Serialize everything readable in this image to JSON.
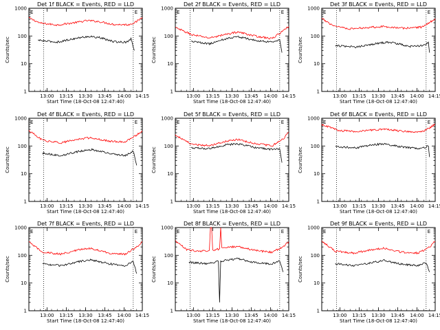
{
  "figure": {
    "xlabel": "Start Time (18-Oct-08 12:47:40)",
    "ylabel": "Counts/sec",
    "x_tick_labels": [
      "13:00",
      "13:15",
      "13:30",
      "13:45",
      "14:00",
      "14:15"
    ],
    "y_tick_labels": [
      "1",
      "10",
      "100",
      "1000"
    ],
    "corner_labels": [
      "E",
      "E"
    ]
  },
  "chart_data": [
    {
      "type": "line",
      "title": "Det 1f BLACK = Events, RED = LLD",
      "xlabel": "Start Time (18-Oct-08 12:47:40)",
      "ylabel": "Counts/sec",
      "x_ticks": [
        "13:00",
        "13:15",
        "13:30",
        "13:45",
        "14:00",
        "14:15"
      ],
      "y_scale": "log",
      "ylim": [
        1,
        1000
      ],
      "series": [
        {
          "color": "#ff0000",
          "points": [
            [
              0,
              450
            ],
            [
              0.1,
              290
            ],
            [
              0.25,
              250
            ],
            [
              0.4,
              300
            ],
            [
              0.52,
              360
            ],
            [
              0.62,
              330
            ],
            [
              0.75,
              260
            ],
            [
              0.88,
              255
            ],
            [
              0.95,
              330
            ],
            [
              1,
              470
            ]
          ]
        },
        {
          "color": "#000000",
          "points": [
            [
              0.08,
              70
            ],
            [
              0.25,
              60
            ],
            [
              0.4,
              80
            ],
            [
              0.52,
              96
            ],
            [
              0.62,
              88
            ],
            [
              0.75,
              62
            ],
            [
              0.86,
              60
            ],
            [
              0.9,
              80
            ],
            [
              0.93,
              30
            ]
          ]
        }
      ]
    },
    {
      "type": "line",
      "title": "Det 2f BLACK = Events, RED = LLD",
      "xlabel": "Start Time (18-Oct-08 12:47:40)",
      "ylabel": "Counts/sec",
      "x_ticks": [
        "13:00",
        "13:15",
        "13:30",
        "13:45",
        "14:00",
        "14:15"
      ],
      "y_scale": "log",
      "ylim": [
        1,
        1000
      ],
      "series": [
        {
          "color": "#ff0000",
          "points": [
            [
              0,
              200
            ],
            [
              0.15,
              110
            ],
            [
              0.3,
              85
            ],
            [
              0.45,
              115
            ],
            [
              0.55,
              140
            ],
            [
              0.7,
              100
            ],
            [
              0.85,
              80
            ],
            [
              0.95,
              150
            ],
            [
              1,
              220
            ]
          ]
        },
        {
          "color": "#000000",
          "points": [
            [
              0.14,
              65
            ],
            [
              0.3,
              52
            ],
            [
              0.45,
              80
            ],
            [
              0.55,
              95
            ],
            [
              0.7,
              70
            ],
            [
              0.84,
              60
            ],
            [
              0.92,
              75
            ],
            [
              0.94,
              25
            ]
          ]
        }
      ]
    },
    {
      "type": "line",
      "title": "Det 3f BLACK = Events, RED = LLD",
      "xlabel": "Start Time (18-Oct-08 12:47:40)",
      "ylabel": "Counts/sec",
      "x_ticks": [
        "13:00",
        "13:15",
        "13:30",
        "13:45",
        "14:00",
        "14:15"
      ],
      "y_scale": "log",
      "ylim": [
        1,
        1000
      ],
      "series": [
        {
          "color": "#ff0000",
          "points": [
            [
              0,
              420
            ],
            [
              0.1,
              240
            ],
            [
              0.25,
              180
            ],
            [
              0.45,
              210
            ],
            [
              0.55,
              220
            ],
            [
              0.72,
              190
            ],
            [
              0.88,
              210
            ],
            [
              0.95,
              300
            ],
            [
              1,
              430
            ]
          ]
        },
        {
          "color": "#000000",
          "points": [
            [
              0.12,
              45
            ],
            [
              0.3,
              40
            ],
            [
              0.5,
              55
            ],
            [
              0.6,
              60
            ],
            [
              0.78,
              42
            ],
            [
              0.9,
              45
            ],
            [
              0.94,
              60
            ],
            [
              0.95,
              25
            ]
          ]
        }
      ]
    },
    {
      "type": "line",
      "title": "Det 4f BLACK = Events, RED = LLD",
      "xlabel": "Start Time (18-Oct-08 12:47:40)",
      "ylabel": "Counts/sec",
      "x_ticks": [
        "13:00",
        "13:15",
        "13:30",
        "13:45",
        "14:00",
        "14:15"
      ],
      "y_scale": "log",
      "ylim": [
        1,
        1000
      ],
      "series": [
        {
          "color": "#ff0000",
          "points": [
            [
              0,
              360
            ],
            [
              0.12,
              160
            ],
            [
              0.28,
              130
            ],
            [
              0.45,
              180
            ],
            [
              0.55,
              200
            ],
            [
              0.7,
              150
            ],
            [
              0.85,
              140
            ],
            [
              0.95,
              250
            ],
            [
              1,
              330
            ]
          ]
        },
        {
          "color": "#000000",
          "points": [
            [
              0.12,
              55
            ],
            [
              0.28,
              45
            ],
            [
              0.45,
              65
            ],
            [
              0.55,
              75
            ],
            [
              0.7,
              55
            ],
            [
              0.85,
              45
            ],
            [
              0.92,
              65
            ],
            [
              0.95,
              20
            ]
          ]
        }
      ]
    },
    {
      "type": "line",
      "title": "Det 5f BLACK = Events, RED = LLD",
      "xlabel": "Start Time (18-Oct-08 12:47:40)",
      "ylabel": "Counts/sec",
      "x_ticks": [
        "13:00",
        "13:15",
        "13:30",
        "13:45",
        "14:00",
        "14:15"
      ],
      "y_scale": "log",
      "ylim": [
        1,
        1000
      ],
      "series": [
        {
          "color": "#ff0000",
          "points": [
            [
              0,
              250
            ],
            [
              0.15,
              110
            ],
            [
              0.3,
              105
            ],
            [
              0.45,
              150
            ],
            [
              0.55,
              170
            ],
            [
              0.7,
              125
            ],
            [
              0.85,
              100
            ],
            [
              0.95,
              180
            ],
            [
              1,
              310
            ]
          ]
        },
        {
          "color": "#000000",
          "points": [
            [
              0.14,
              85
            ],
            [
              0.3,
              80
            ],
            [
              0.45,
              110
            ],
            [
              0.55,
              120
            ],
            [
              0.7,
              90
            ],
            [
              0.85,
              75
            ],
            [
              0.92,
              80
            ],
            [
              0.94,
              25
            ]
          ]
        }
      ]
    },
    {
      "type": "line",
      "title": "Det 6f BLACK = Events, RED = LLD",
      "xlabel": "Start Time (18-Oct-08 12:47:40)",
      "ylabel": "Counts/sec",
      "x_ticks": [
        "13:00",
        "13:15",
        "13:30",
        "13:45",
        "14:00",
        "14:15"
      ],
      "y_scale": "log",
      "ylim": [
        1,
        1000
      ],
      "series": [
        {
          "color": "#ff0000",
          "points": [
            [
              0,
              600
            ],
            [
              0.15,
              360
            ],
            [
              0.3,
              330
            ],
            [
              0.45,
              380
            ],
            [
              0.55,
              400
            ],
            [
              0.72,
              340
            ],
            [
              0.88,
              320
            ],
            [
              0.95,
              450
            ],
            [
              1,
              620
            ]
          ]
        },
        {
          "color": "#000000",
          "points": [
            [
              0.12,
              95
            ],
            [
              0.3,
              85
            ],
            [
              0.45,
              110
            ],
            [
              0.55,
              120
            ],
            [
              0.72,
              90
            ],
            [
              0.88,
              80
            ],
            [
              0.94,
              100
            ],
            [
              0.95,
              40
            ]
          ]
        }
      ]
    },
    {
      "type": "line",
      "title": "Det 7f BLACK = Events, RED = LLD",
      "xlabel": "Start Time (18-Oct-08 12:47:40)",
      "ylabel": "Counts/sec",
      "x_ticks": [
        "13:00",
        "13:15",
        "13:30",
        "13:45",
        "14:00",
        "14:15"
      ],
      "y_scale": "log",
      "ylim": [
        1,
        1000
      ],
      "series": [
        {
          "color": "#ff0000",
          "points": [
            [
              0,
              300
            ],
            [
              0.12,
              130
            ],
            [
              0.28,
              110
            ],
            [
              0.45,
              160
            ],
            [
              0.55,
              180
            ],
            [
              0.7,
              120
            ],
            [
              0.85,
              110
            ],
            [
              0.95,
              200
            ],
            [
              1,
              310
            ]
          ]
        },
        {
          "color": "#000000",
          "points": [
            [
              0.12,
              50
            ],
            [
              0.28,
              42
            ],
            [
              0.45,
              60
            ],
            [
              0.55,
              68
            ],
            [
              0.7,
              50
            ],
            [
              0.85,
              42
            ],
            [
              0.92,
              60
            ],
            [
              0.95,
              22
            ]
          ]
        }
      ]
    },
    {
      "type": "line",
      "title": "Det 8f BLACK = Events, RED = LLD",
      "xlabel": "Start Time (18-Oct-08 12:47:40)",
      "ylabel": "Counts/sec",
      "x_ticks": [
        "13:00",
        "13:15",
        "13:30",
        "13:45",
        "14:00",
        "14:15"
      ],
      "y_scale": "log",
      "ylim": [
        1,
        1000
      ],
      "series": [
        {
          "color": "#ff0000",
          "points": [
            [
              0,
              330
            ],
            [
              0.1,
              160
            ],
            [
              0.2,
              140
            ],
            [
              0.3,
              150
            ],
            [
              0.31,
              1000
            ],
            [
              0.32,
              1000
            ],
            [
              0.33,
              150
            ],
            [
              0.39,
              170
            ],
            [
              0.4,
              1000
            ],
            [
              0.41,
              180
            ],
            [
              0.55,
              210
            ],
            [
              0.7,
              150
            ],
            [
              0.85,
              130
            ],
            [
              0.95,
              200
            ],
            [
              1,
              310
            ]
          ]
        },
        {
          "color": "#000000",
          "points": [
            [
              0.12,
              55
            ],
            [
              0.3,
              50
            ],
            [
              0.33,
              55
            ],
            [
              0.38,
              60
            ],
            [
              0.39,
              2
            ],
            [
              0.4,
              62
            ],
            [
              0.55,
              75
            ],
            [
              0.7,
              55
            ],
            [
              0.85,
              48
            ],
            [
              0.92,
              65
            ],
            [
              0.95,
              25
            ]
          ]
        }
      ]
    },
    {
      "type": "line",
      "title": "Det 9f BLACK = Events, RED = LLD",
      "xlabel": "Start Time (18-Oct-08 12:47:40)",
      "ylabel": "Counts/sec",
      "x_ticks": [
        "13:00",
        "13:15",
        "13:30",
        "13:45",
        "14:00",
        "14:15"
      ],
      "y_scale": "log",
      "ylim": [
        1,
        1000
      ],
      "series": [
        {
          "color": "#ff0000",
          "points": [
            [
              0,
              320
            ],
            [
              0.12,
              140
            ],
            [
              0.28,
              120
            ],
            [
              0.45,
              160
            ],
            [
              0.55,
              180
            ],
            [
              0.7,
              130
            ],
            [
              0.85,
              120
            ],
            [
              0.95,
              200
            ],
            [
              1,
              320
            ]
          ]
        },
        {
          "color": "#000000",
          "points": [
            [
              0.12,
              50
            ],
            [
              0.28,
              42
            ],
            [
              0.45,
              55
            ],
            [
              0.55,
              65
            ],
            [
              0.7,
              48
            ],
            [
              0.85,
              42
            ],
            [
              0.92,
              55
            ],
            [
              0.95,
              25
            ]
          ]
        }
      ]
    }
  ]
}
